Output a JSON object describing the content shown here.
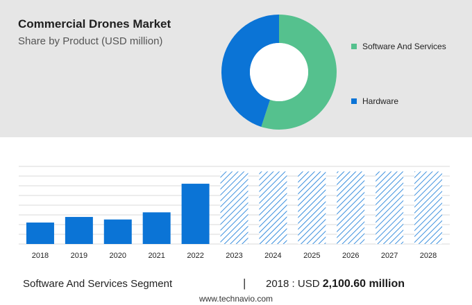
{
  "header": {
    "title": "Commercial Drones Market",
    "subtitle": "Share by Product (USD million)"
  },
  "chart_data": [
    {
      "type": "pie",
      "style": "donut",
      "segments": [
        {
          "label": "Software And Services",
          "share": 0.55,
          "color": "#55c18e"
        },
        {
          "label": "Hardware",
          "share": 0.45,
          "color": "#0b74d6"
        }
      ],
      "legend_position": "right"
    },
    {
      "type": "bar",
      "categories": [
        "2018",
        "2019",
        "2020",
        "2021",
        "2022",
        "2023",
        "2024",
        "2025",
        "2026",
        "2027",
        "2028"
      ],
      "values": [
        2100.6,
        2650,
        2400,
        3100,
        5900,
        7100,
        7100,
        7100,
        7100,
        7100,
        7100
      ],
      "forecast_from": "2023",
      "ylim": [
        0,
        7600
      ],
      "gridlines": 8,
      "actual_color": "#0b74d6",
      "forecast_color": "#0b74d6",
      "title": "",
      "xlabel": "",
      "ylabel": ""
    }
  ],
  "footer": {
    "segment_label": "Software And Services Segment",
    "divider": "|",
    "year_label": "2018 : USD",
    "year_value": "2,100.60 million"
  },
  "source": "www.technavio.com"
}
